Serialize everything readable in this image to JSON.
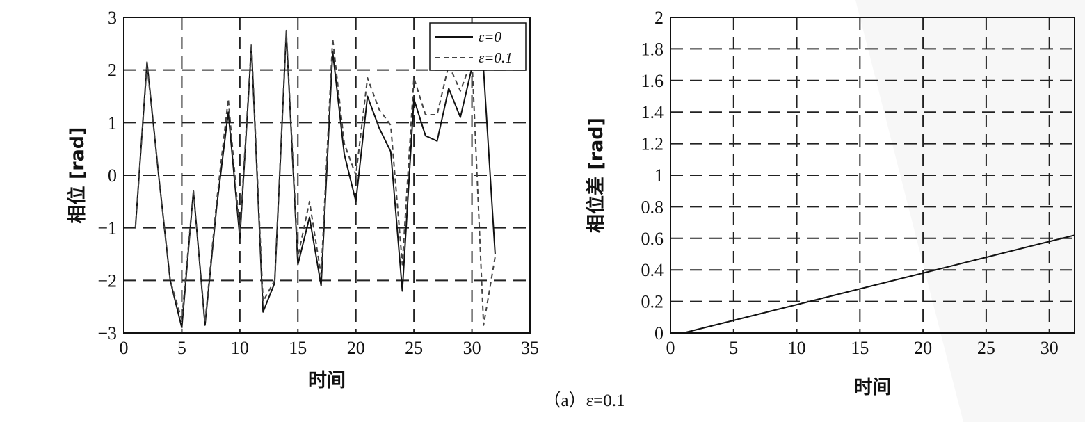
{
  "caption": "（a）ε=0.1",
  "chart_data": [
    {
      "type": "line",
      "xlabel": "时间",
      "ylabel": "相位 [rad]",
      "xlim": [
        0,
        35
      ],
      "ylim": [
        -3,
        3
      ],
      "xticks": [
        "0",
        "5",
        "10",
        "15",
        "20",
        "25",
        "30",
        "35"
      ],
      "yticks": [
        "−3",
        "−2",
        "−1",
        "0",
        "1",
        "2",
        "3"
      ],
      "grid": true,
      "legend_position": "top-right",
      "series": [
        {
          "name": "ε=0",
          "style": "solid",
          "color": "#111111",
          "x": [
            1,
            2,
            3,
            4,
            5,
            6,
            7,
            8,
            9,
            10,
            11,
            12,
            13,
            14,
            15,
            16,
            17,
            18,
            19,
            20,
            21,
            22,
            23,
            24,
            25,
            26,
            27,
            28,
            29,
            30,
            31,
            32
          ],
          "y": [
            -1.0,
            2.15,
            0.0,
            -2.0,
            -2.9,
            -0.3,
            -2.85,
            -0.6,
            1.2,
            -1.2,
            2.45,
            -2.6,
            -2.05,
            2.7,
            -1.7,
            -0.8,
            -2.1,
            2.35,
            0.4,
            -0.5,
            1.5,
            0.9,
            0.45,
            -2.2,
            1.45,
            0.75,
            0.65,
            1.65,
            1.1,
            2.05,
            2.0,
            -1.5
          ]
        },
        {
          "name": "ε=0.1",
          "style": "dashed",
          "color": "#444444",
          "x": [
            1,
            2,
            3,
            4,
            5,
            6,
            7,
            8,
            9,
            10,
            11,
            12,
            13,
            14,
            15,
            16,
            17,
            18,
            19,
            20,
            21,
            22,
            23,
            24,
            25,
            26,
            27,
            28,
            29,
            30,
            31,
            32
          ],
          "y": [
            -1.0,
            2.1,
            0.0,
            -2.0,
            -2.75,
            -0.3,
            -2.8,
            -0.5,
            1.45,
            -1.1,
            2.5,
            -2.4,
            -2.0,
            2.75,
            -1.55,
            -0.5,
            -1.9,
            2.6,
            0.6,
            0.0,
            1.85,
            1.25,
            0.95,
            -1.7,
            1.85,
            1.15,
            1.15,
            2.1,
            1.6,
            2.2,
            -2.85,
            -1.55
          ]
        }
      ]
    },
    {
      "type": "line",
      "xlabel": "时间",
      "ylabel": "相位差 [rad]",
      "xlim": [
        0,
        32
      ],
      "ylim": [
        0,
        2
      ],
      "xticks": [
        "0",
        "5",
        "10",
        "15",
        "20",
        "25",
        "30"
      ],
      "yticks": [
        "0",
        "0.2",
        "0.4",
        "0.6",
        "0.8",
        "1",
        "1.2",
        "1.4",
        "1.6",
        "1.8",
        "2"
      ],
      "grid": true,
      "series": [
        {
          "style": "solid",
          "color": "#111111",
          "x": [
            1,
            32
          ],
          "y": [
            0.0,
            0.62
          ]
        }
      ]
    }
  ]
}
